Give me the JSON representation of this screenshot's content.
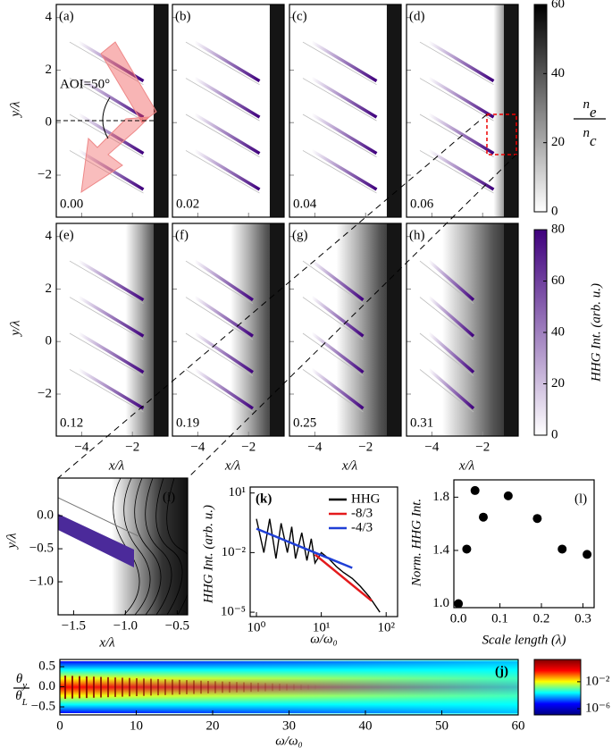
{
  "chart_data": [
    {
      "type": "image_grid",
      "xlabel": "x/λ",
      "ylabel": "y/λ",
      "xlim": [
        -5,
        -0.6
      ],
      "ylim": [
        -3.6,
        4.5
      ],
      "xticks": [
        {
          "value": -4,
          "label": "−4"
        },
        {
          "value": -2,
          "label": "−2"
        }
      ],
      "yticks": [
        {
          "value": -2,
          "label": "−2"
        },
        0,
        2,
        4
      ],
      "panels": [
        {
          "label": "(a)",
          "time": "0.00",
          "annotation": "AOI=50°"
        },
        {
          "label": "(b)",
          "time": "0.02"
        },
        {
          "label": "(c)",
          "time": "0.04"
        },
        {
          "label": "(d)",
          "time": "0.06"
        },
        {
          "label": "(e)",
          "time": "0.12"
        },
        {
          "label": "(f)",
          "time": "0.19"
        },
        {
          "label": "(g)",
          "time": "0.25"
        },
        {
          "label": "(h)",
          "time": "0.31"
        }
      ],
      "colorbars": [
        {
          "numerator": {
            "base": "n",
            "sub": "e"
          },
          "denominator": {
            "base": "n",
            "sub": "c"
          },
          "lim": [
            0,
            60
          ],
          "ticks": [
            0,
            20,
            40,
            60
          ],
          "colors": [
            "#ffffff",
            "#000000"
          ]
        },
        {
          "label": "HHG Int. (arb. u.)",
          "lim": [
            0,
            80
          ],
          "ticks": [
            0,
            20,
            40,
            60,
            80
          ],
          "colors": [
            "#ffffff",
            "#3f007d"
          ]
        }
      ]
    },
    {
      "type": "image",
      "label": "(i)",
      "xlabel": "x/λ",
      "ylabel": "y/λ",
      "xlim": [
        -1.65,
        -0.4
      ],
      "ylim": [
        -1.5,
        0.57
      ],
      "xticks": [
        {
          "value": -1.5,
          "label": "−1.5"
        },
        {
          "value": -1.0,
          "label": "−1.0"
        },
        {
          "value": -0.5,
          "label": "−0.5"
        }
      ],
      "yticks": [
        {
          "value": -1.0,
          "label": "−1.0"
        },
        {
          "value": -0.5,
          "label": "−0.5"
        },
        {
          "value": 0,
          "label": "0.0"
        }
      ]
    },
    {
      "type": "line",
      "label": "(k)",
      "xlabel": "ω/ω₀",
      "ylabel": "HHG Int. (arb. u.)",
      "xlog": true,
      "ylog": true,
      "xlim": [
        0.8,
        150
      ],
      "ylim": [
        6e-06,
        20
      ],
      "xticks": [
        {
          "value": 1,
          "label": "10⁰"
        },
        {
          "value": 10,
          "label": "10¹"
        },
        {
          "value": 100,
          "label": "10²"
        }
      ],
      "yticks": [
        {
          "value": 1e-05,
          "label": "10⁻⁵"
        },
        {
          "value": 0.01,
          "label": "10⁻²"
        },
        {
          "value": 10,
          "label": "10¹"
        }
      ],
      "series": [
        {
          "name": "HHG",
          "color": "#000000",
          "x": [
            1,
            1.3,
            1.6,
            2,
            2.4,
            3,
            3.5,
            4,
            5,
            6,
            7,
            8,
            10,
            13,
            17,
            22,
            30,
            40,
            55,
            80
          ],
          "values": [
            0.5,
            0.01,
            0.5,
            0.005,
            0.3,
            0.01,
            0.2,
            0.005,
            0.1,
            0.004,
            0.05,
            0.003,
            0.01,
            0.005,
            0.002,
            0.001,
            0.0005,
            0.0002,
            6e-05,
            1e-05
          ]
        },
        {
          "name": "-8/3",
          "color": "#e41a1c",
          "x": [
            8,
            60
          ],
          "values": [
            0.008,
            3.7e-05
          ]
        },
        {
          "name": "-4/3",
          "color": "#1f3fd6",
          "x": [
            1,
            30
          ],
          "values": [
            0.16,
            0.0017
          ]
        }
      ]
    },
    {
      "type": "scatter",
      "label": "(l)",
      "xlabel": "Scale length (λ)",
      "ylabel": "Norm. HHG Int.",
      "xlim": [
        -0.011,
        0.327
      ],
      "ylim": [
        0.97,
        1.93
      ],
      "xticks": [
        {
          "value": 0,
          "label": "0.0"
        },
        0.1,
        0.2,
        0.3
      ],
      "yticks": [
        {
          "value": 1,
          "label": "1.0"
        },
        1.4,
        1.8
      ],
      "color": "#000000",
      "x": [
        0,
        0.02,
        0.04,
        0.06,
        0.12,
        0.19,
        0.25,
        0.31
      ],
      "values": [
        1.0,
        1.41,
        1.85,
        1.65,
        1.81,
        1.64,
        1.41,
        1.37
      ]
    },
    {
      "type": "heatmap",
      "label": "(j)",
      "xlabel": "ω/ω₀",
      "ylabel": {
        "numerator": {
          "base": "θ",
          "sub": "y"
        },
        "denominator": {
          "base": "θ",
          "sub": "L"
        }
      },
      "xlim": [
        0,
        60
      ],
      "ylim": [
        -0.7,
        0.68
      ],
      "xticks": [
        0,
        10,
        20,
        30,
        40,
        50,
        60
      ],
      "yticks": [
        {
          "value": -0.5,
          "label": "−0.5"
        },
        {
          "value": 0,
          "label": "0.0"
        },
        0.5
      ],
      "colorbar": {
        "log": true,
        "lim": [
          1.2e-07,
          20
        ],
        "ticks": [
          {
            "value": 1e-06,
            "label": "10⁻⁶"
          },
          {
            "value": 0.01,
            "label": "10⁻²"
          }
        ],
        "colors": [
          "#00007f",
          "#0000ff",
          "#00ffff",
          "#ffff00",
          "#ff0000",
          "#7f0000"
        ]
      }
    }
  ]
}
